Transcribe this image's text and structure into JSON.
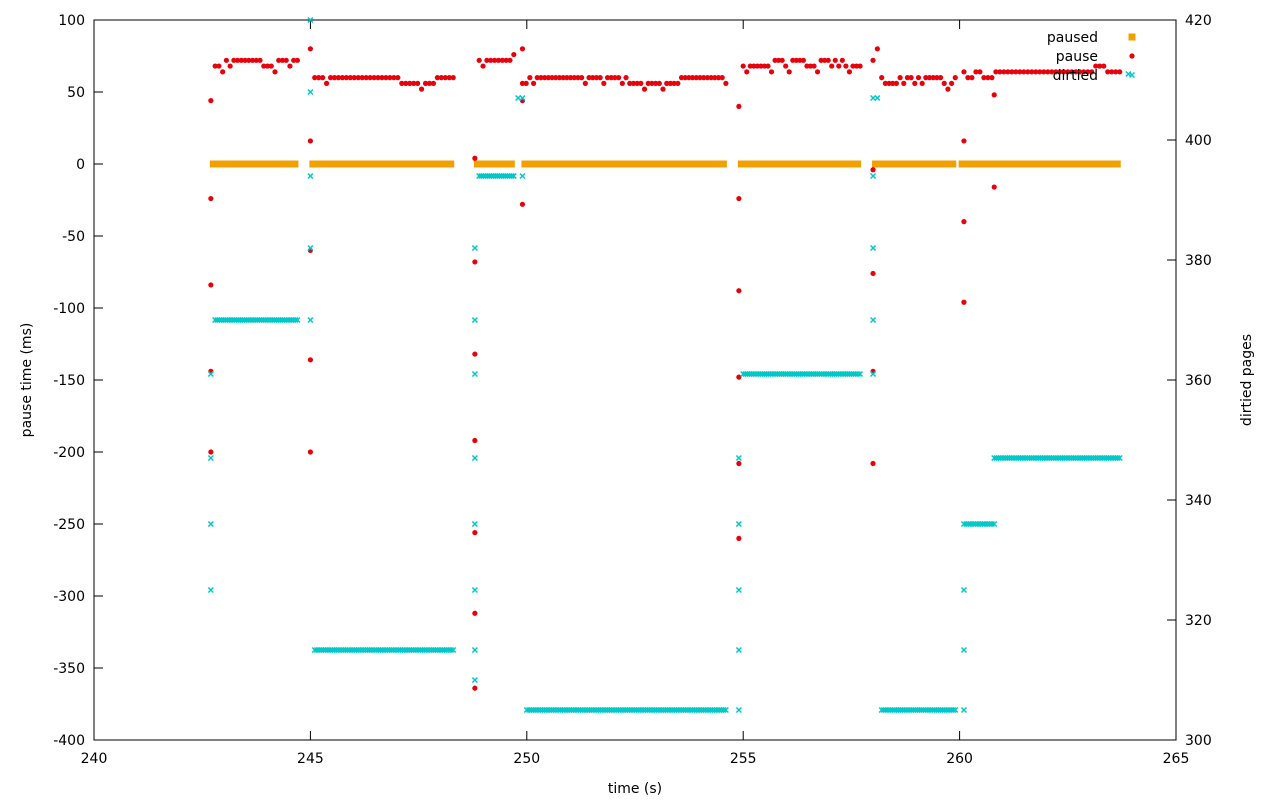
{
  "chart_data": {
    "type": "scatter",
    "title": "",
    "xlabel": "time (s)",
    "ylabel": "pause time (ms)",
    "y2label": "dirtied pages",
    "xlim": [
      240,
      265
    ],
    "ylim": [
      -400,
      100
    ],
    "y2lim": [
      300,
      420
    ],
    "x_ticks": [
      240,
      245,
      250,
      255,
      260,
      265
    ],
    "y_ticks": [
      -400,
      -350,
      -300,
      -250,
      -200,
      -150,
      -100,
      -50,
      0,
      50,
      100
    ],
    "y2_ticks": [
      300,
      320,
      340,
      360,
      380,
      400,
      420
    ],
    "grid": false,
    "legend_position": "top-right",
    "colors": {
      "paused": "#f0a000",
      "pause": "#e8000b",
      "dirtied": "#00c8c8"
    },
    "series": [
      {
        "name": "paused",
        "axis": "y",
        "marker": "square",
        "segments": [
          {
            "x_start": 242.7,
            "x_end": 244.7,
            "y": 0
          },
          {
            "x_start": 245.0,
            "x_end": 248.3,
            "y": 0
          },
          {
            "x_start": 248.8,
            "x_end": 249.7,
            "y": 0
          },
          {
            "x_start": 249.9,
            "x_end": 254.6,
            "y": 0
          },
          {
            "x_start": 254.9,
            "x_end": 257.7,
            "y": 0
          },
          {
            "x_start": 258.0,
            "x_end": 259.9,
            "y": 0
          },
          {
            "x_start": 260.0,
            "x_end": 263.7,
            "y": 0
          }
        ]
      },
      {
        "name": "pause",
        "axis": "y",
        "marker": "dot",
        "clusters": [
          {
            "x_start": 242.8,
            "x_end": 244.7,
            "values": [
              68,
              68,
              64,
              72,
              68,
              72,
              72,
              72,
              72,
              72,
              72,
              72,
              72,
              68,
              68,
              68,
              64,
              72,
              72,
              72,
              68,
              72,
              72
            ]
          },
          {
            "x_start": 245.1,
            "x_end": 248.3,
            "values": [
              60,
              60,
              60,
              56,
              60,
              60,
              60,
              60,
              60,
              60,
              60,
              60,
              60,
              60,
              60,
              60,
              60,
              60,
              60,
              60,
              60,
              60,
              56,
              56,
              56,
              56,
              56,
              52,
              56,
              56,
              56,
              60,
              60,
              60,
              60,
              60
            ]
          },
          {
            "x_start": 248.9,
            "x_end": 249.7,
            "values": [
              72,
              68,
              72,
              72,
              72,
              72,
              72,
              72,
              72,
              76
            ]
          },
          {
            "x_start": 249.9,
            "x_end": 254.6,
            "values": [
              56,
              56,
              60,
              56,
              60,
              60,
              60,
              60,
              60,
              60,
              60,
              60,
              60,
              60,
              60,
              60,
              60,
              56,
              60,
              60,
              60,
              60,
              56,
              60,
              60,
              60,
              60,
              56,
              60,
              56,
              56,
              56,
              56,
              52,
              56,
              56,
              56,
              56,
              52,
              56,
              56,
              56,
              56,
              60,
              60,
              60,
              60,
              60,
              60,
              60,
              60,
              60,
              60,
              60,
              60,
              56
            ]
          },
          {
            "x_start": 255.0,
            "x_end": 257.7,
            "values": [
              68,
              64,
              68,
              68,
              68,
              68,
              68,
              68,
              64,
              72,
              72,
              72,
              68,
              64,
              72,
              72,
              72,
              72,
              68,
              68,
              68,
              64,
              72,
              72,
              72,
              68,
              72,
              68,
              72,
              68,
              64,
              68,
              68,
              68
            ]
          },
          {
            "x_start": 258.2,
            "x_end": 259.9,
            "values": [
              60,
              56,
              56,
              56,
              56,
              60,
              56,
              60,
              60,
              56,
              60,
              56,
              60,
              60,
              60,
              60,
              60,
              56,
              52,
              56,
              60
            ]
          },
          {
            "x_start": 260.1,
            "x_end": 263.7,
            "values": [
              64,
              60,
              60,
              64,
              64,
              60,
              60,
              60,
              64,
              64,
              64,
              64,
              64,
              64,
              64,
              64,
              64,
              64,
              64,
              64,
              64,
              64,
              64,
              64,
              64,
              64,
              64,
              64,
              64,
              64,
              64,
              64,
              64,
              68,
              68,
              68,
              64,
              64,
              64,
              64
            ]
          }
        ],
        "points": [
          [
            242.7,
            44
          ],
          [
            242.7,
            -24
          ],
          [
            242.7,
            -84
          ],
          [
            242.7,
            -144
          ],
          [
            242.7,
            -200
          ],
          [
            245.0,
            80
          ],
          [
            245.0,
            16
          ],
          [
            245.0,
            -60
          ],
          [
            245.0,
            -136
          ],
          [
            245.0,
            -200
          ],
          [
            248.8,
            4
          ],
          [
            248.8,
            -68
          ],
          [
            248.8,
            -132
          ],
          [
            248.8,
            -192
          ],
          [
            248.8,
            -256
          ],
          [
            248.8,
            -312
          ],
          [
            248.8,
            -364
          ],
          [
            249.9,
            44
          ],
          [
            249.9,
            80
          ],
          [
            249.9,
            -28
          ],
          [
            254.9,
            40
          ],
          [
            254.9,
            -24
          ],
          [
            254.9,
            -88
          ],
          [
            254.9,
            -148
          ],
          [
            254.9,
            -208
          ],
          [
            254.9,
            -260
          ],
          [
            258.0,
            72
          ],
          [
            258.1,
            80
          ],
          [
            258.0,
            -4
          ],
          [
            258.0,
            -76
          ],
          [
            258.0,
            -144
          ],
          [
            258.0,
            -208
          ],
          [
            260.1,
            16
          ],
          [
            260.1,
            -40
          ],
          [
            260.1,
            -96
          ],
          [
            260.8,
            48
          ],
          [
            260.8,
            -16
          ]
        ]
      },
      {
        "name": "dirtied",
        "axis": "y2",
        "marker": "cross",
        "clusters": [
          {
            "x_start": 242.8,
            "x_end": 244.7,
            "count": 40,
            "value": 370
          },
          {
            "x_start": 245.1,
            "x_end": 248.3,
            "count": 64,
            "value": 315
          },
          {
            "x_start": 248.9,
            "x_end": 249.7,
            "count": 18,
            "value": 394
          },
          {
            "x_start": 250.0,
            "x_end": 254.6,
            "count": 90,
            "value": 305
          },
          {
            "x_start": 255.0,
            "x_end": 257.7,
            "count": 56,
            "value": 361
          },
          {
            "x_start": 258.2,
            "x_end": 259.9,
            "count": 36,
            "value": 305
          },
          {
            "x_start": 260.1,
            "x_end": 260.8,
            "count": 14,
            "value": 336
          },
          {
            "x_start": 260.8,
            "x_end": 263.7,
            "count": 58,
            "value": 347
          }
        ],
        "points": [
          [
            242.7,
            361
          ],
          [
            242.7,
            347
          ],
          [
            242.7,
            336
          ],
          [
            242.7,
            325
          ],
          [
            245.0,
            420
          ],
          [
            245.0,
            408
          ],
          [
            245.0,
            394
          ],
          [
            245.0,
            382
          ],
          [
            245.0,
            370
          ],
          [
            248.8,
            382
          ],
          [
            248.8,
            370
          ],
          [
            248.8,
            361
          ],
          [
            248.8,
            347
          ],
          [
            248.8,
            336
          ],
          [
            248.8,
            325
          ],
          [
            248.8,
            315
          ],
          [
            248.8,
            310
          ],
          [
            249.8,
            407
          ],
          [
            249.9,
            407
          ],
          [
            249.9,
            394
          ],
          [
            254.9,
            347
          ],
          [
            254.9,
            336
          ],
          [
            254.9,
            325
          ],
          [
            254.9,
            315
          ],
          [
            254.9,
            305
          ],
          [
            258.0,
            407
          ],
          [
            258.1,
            407
          ],
          [
            258.0,
            394
          ],
          [
            258.0,
            382
          ],
          [
            258.0,
            370
          ],
          [
            258.0,
            361
          ],
          [
            260.1,
            325
          ],
          [
            260.1,
            315
          ],
          [
            260.1,
            305
          ],
          [
            263.9,
            411
          ]
        ]
      }
    ]
  }
}
